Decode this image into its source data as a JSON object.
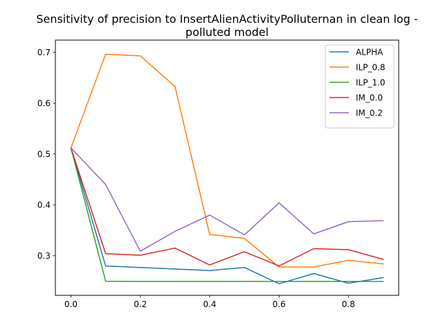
{
  "chart_data": {
    "type": "line",
    "title_line1": "Sensitivity of precision to InsertAlienActivityPolluternan in clean log -",
    "title_line2": "polluted model",
    "xlabel": "",
    "ylabel": "",
    "x": [
      0.0,
      0.1,
      0.2,
      0.3,
      0.4,
      0.5,
      0.6,
      0.7,
      0.8,
      0.9
    ],
    "xlim": [
      -0.045,
      0.945
    ],
    "ylim": [
      0.2222,
      0.7239
    ],
    "x_ticks": [
      0.0,
      0.2,
      0.4,
      0.6,
      0.8
    ],
    "x_tick_labels": [
      "0.0",
      "0.2",
      "0.4",
      "0.6",
      "0.8"
    ],
    "y_ticks": [
      0.3,
      0.4,
      0.5,
      0.6,
      0.7
    ],
    "y_tick_labels": [
      "0.3",
      "0.4",
      "0.5",
      "0.6",
      "0.7"
    ],
    "grid": false,
    "legend_position": "top-right",
    "series": [
      {
        "name": "ALPHA",
        "color": "#1f77b4",
        "values": [
          0.512,
          0.28,
          0.277,
          0.274,
          0.271,
          0.277,
          0.245,
          0.265,
          0.246,
          0.257
        ]
      },
      {
        "name": "ILP_0.8",
        "color": "#ff7f0e",
        "values": [
          0.512,
          0.696,
          0.693,
          0.633,
          0.342,
          0.334,
          0.278,
          0.278,
          0.291,
          0.284
        ]
      },
      {
        "name": "ILP_1.0",
        "color": "#2ca02c",
        "values": [
          0.512,
          0.25,
          0.2495,
          0.2495,
          0.2495,
          0.2495,
          0.2495,
          0.2495,
          0.2495,
          0.2495
        ]
      },
      {
        "name": "IM_0.0",
        "color": "#d62728",
        "values": [
          0.512,
          0.304,
          0.301,
          0.315,
          0.282,
          0.308,
          0.28,
          0.314,
          0.312,
          0.293
        ]
      },
      {
        "name": "IM_0.2",
        "color": "#9467bd",
        "values": [
          0.512,
          0.44,
          0.309,
          0.348,
          0.38,
          0.341,
          0.404,
          0.343,
          0.367,
          0.369
        ]
      }
    ]
  }
}
